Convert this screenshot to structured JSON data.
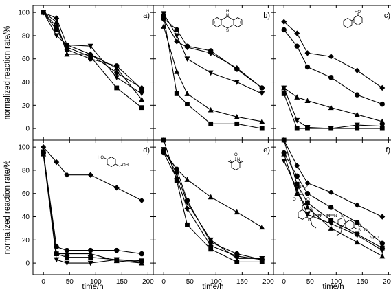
{
  "figure": {
    "ylabel": "normalized reaction rate/%",
    "xlabel": "time/h"
  },
  "chart_data": [
    {
      "type": "line",
      "panel": "a)",
      "x_ticks": [
        0,
        50,
        100,
        150,
        200
      ],
      "y_ticks": [
        0,
        20,
        40,
        60,
        80,
        100
      ],
      "xlim": [
        -20,
        210
      ],
      "ylim": [
        -10,
        106
      ],
      "series": [
        {
          "marker": "square",
          "x": [
            0,
            25,
            45,
            90,
            140,
            188
          ],
          "y": [
            100,
            85,
            70,
            62,
            35,
            18
          ]
        },
        {
          "marker": "circle",
          "x": [
            0,
            25,
            45,
            90,
            140,
            188
          ],
          "y": [
            100,
            88,
            68,
            60,
            54,
            34
          ]
        },
        {
          "marker": "triangle-up",
          "x": [
            0,
            25,
            45,
            90,
            140,
            188
          ],
          "y": [
            100,
            92,
            64,
            64,
            52,
            25
          ]
        },
        {
          "marker": "triangle-down",
          "x": [
            0,
            25,
            45,
            90,
            140,
            188
          ],
          "y": [
            100,
            80,
            72,
            71,
            44,
            30
          ]
        },
        {
          "marker": "diamond",
          "x": [
            0,
            25,
            45,
            90,
            140,
            188
          ],
          "y": [
            100,
            95,
            72,
            64,
            48,
            35
          ]
        }
      ]
    },
    {
      "type": "line",
      "panel": "b)",
      "x_ticks": [
        0,
        50,
        100,
        150,
        200
      ],
      "y_ticks": [
        0,
        20,
        40,
        60,
        80,
        100
      ],
      "xlim": [
        -20,
        210
      ],
      "ylim": [
        -10,
        106
      ],
      "series": [
        {
          "marker": "square",
          "x": [
            0,
            25,
            45,
            90,
            140,
            188
          ],
          "y": [
            97,
            30,
            21,
            4,
            4,
            0
          ]
        },
        {
          "marker": "circle",
          "x": [
            0,
            25,
            45,
            90,
            140,
            188
          ],
          "y": [
            95,
            85,
            71,
            67,
            51,
            35
          ]
        },
        {
          "marker": "triangle-up",
          "x": [
            0,
            25,
            45,
            90,
            140,
            188
          ],
          "y": [
            88,
            49,
            30,
            16,
            10,
            6
          ]
        },
        {
          "marker": "triangle-down",
          "x": [
            0,
            25,
            45,
            90,
            140,
            188
          ],
          "y": [
            99,
            80,
            60,
            48,
            40,
            30
          ]
        },
        {
          "marker": "diamond",
          "x": [
            0,
            25,
            45,
            90,
            140,
            188
          ],
          "y": [
            94,
            75,
            70,
            65,
            52,
            35
          ]
        }
      ]
    },
    {
      "type": "line",
      "panel": "c)",
      "x_ticks": [
        0,
        50,
        100,
        150,
        200
      ],
      "y_ticks": [
        0,
        20,
        40,
        60,
        80,
        100
      ],
      "xlim": [
        -20,
        210
      ],
      "ylim": [
        -10,
        106
      ],
      "series": [
        {
          "marker": "square",
          "x": [
            0,
            25,
            45,
            90,
            140,
            188
          ],
          "y": [
            30,
            0,
            0,
            0,
            0,
            0
          ]
        },
        {
          "marker": "circle",
          "x": [
            0,
            25,
            45,
            90,
            140,
            188
          ],
          "y": [
            85,
            71,
            53,
            44,
            29,
            21
          ]
        },
        {
          "marker": "triangle-up",
          "x": [
            0,
            25,
            45,
            90,
            140,
            188
          ],
          "y": [
            35,
            27,
            24,
            18,
            12,
            6
          ]
        },
        {
          "marker": "triangle-down",
          "x": [
            0,
            25,
            45,
            90,
            140,
            188
          ],
          "y": [
            35,
            7,
            1,
            0,
            3,
            2
          ]
        },
        {
          "marker": "diamond",
          "x": [
            0,
            25,
            45,
            90,
            140,
            188
          ],
          "y": [
            92,
            82,
            65,
            62,
            50,
            35
          ]
        }
      ]
    },
    {
      "type": "line",
      "panel": "d)",
      "x_ticks": [
        0,
        50,
        100,
        150,
        200
      ],
      "y_ticks": [
        0,
        20,
        40,
        60,
        80,
        100
      ],
      "xlim": [
        -20,
        210
      ],
      "ylim": [
        -10,
        106
      ],
      "series": [
        {
          "marker": "square",
          "x": [
            0,
            25,
            45,
            90,
            140,
            188
          ],
          "y": [
            96,
            8,
            5,
            5,
            3,
            2
          ]
        },
        {
          "marker": "circle",
          "x": [
            0,
            25,
            45,
            90,
            140,
            188
          ],
          "y": [
            95,
            14,
            11,
            11,
            11,
            8
          ]
        },
        {
          "marker": "triangle-up",
          "x": [
            0,
            25,
            45,
            90,
            140,
            188
          ],
          "y": [
            94,
            8,
            8,
            8,
            2,
            0
          ]
        },
        {
          "marker": "triangle-down",
          "x": [
            0,
            25,
            45,
            90,
            140,
            188
          ],
          "y": [
            93,
            3,
            0,
            0,
            3,
            1
          ]
        },
        {
          "marker": "diamond",
          "x": [
            0,
            25,
            45,
            90,
            140,
            188
          ],
          "y": [
            100,
            87,
            76,
            76,
            65,
            54
          ]
        }
      ]
    },
    {
      "type": "line",
      "panel": "e)",
      "x_ticks": [
        0,
        50,
        100,
        150,
        200
      ],
      "y_ticks": [
        0,
        20,
        40,
        60,
        80,
        100
      ],
      "xlim": [
        -20,
        210
      ],
      "ylim": [
        -10,
        106
      ],
      "series": [
        {
          "marker": "square",
          "x": [
            0,
            25,
            45,
            90,
            140,
            188
          ],
          "y": [
            106,
            71,
            33,
            12,
            1,
            1
          ]
        },
        {
          "marker": "circle",
          "x": [
            0,
            25,
            45,
            90,
            140,
            188
          ],
          "y": [
            97,
            81,
            54,
            18,
            8,
            3
          ]
        },
        {
          "marker": "triangle-up",
          "x": [
            0,
            25,
            45,
            90,
            140,
            188
          ],
          "y": [
            96,
            81,
            72,
            57,
            44,
            31
          ]
        },
        {
          "marker": "triangle-down",
          "x": [
            0,
            25,
            45,
            90,
            140,
            188
          ],
          "y": [
            98,
            77,
            52,
            20,
            4,
            4
          ]
        },
        {
          "marker": "diamond",
          "x": [
            0,
            25,
            45,
            90,
            140,
            188
          ],
          "y": [
            95,
            73,
            47,
            15,
            6,
            3
          ]
        }
      ]
    },
    {
      "type": "line",
      "panel": "f)",
      "x_ticks": [
        0,
        50,
        100,
        150,
        200
      ],
      "y_ticks": [
        0,
        20,
        40,
        60,
        80,
        100
      ],
      "xlim": [
        -20,
        210
      ],
      "ylim": [
        -10,
        106
      ],
      "series": [
        {
          "marker": "square",
          "x": [
            0,
            25,
            45,
            90,
            140,
            188
          ],
          "y": [
            106,
            68,
            52,
            37,
            25,
            13
          ]
        },
        {
          "marker": "circle",
          "x": [
            0,
            25,
            45,
            90,
            140,
            188
          ],
          "y": [
            95,
            75,
            60,
            48,
            35,
            17
          ]
        },
        {
          "marker": "triangle-up",
          "x": [
            0,
            25,
            45,
            90,
            140,
            188
          ],
          "y": [
            94,
            60,
            48,
            30,
            18,
            6
          ]
        },
        {
          "marker": "triangle-down",
          "x": [
            0,
            25,
            45,
            90,
            140,
            188
          ],
          "y": [
            88,
            64,
            42,
            34,
            24,
            11
          ]
        },
        {
          "marker": "diamond",
          "x": [
            0,
            25,
            45,
            90,
            140,
            188
          ],
          "y": [
            106,
            84,
            69,
            61,
            50,
            40
          ]
        }
      ]
    }
  ],
  "structures": {
    "b": {
      "atoms": [
        "H",
        "N",
        "S"
      ]
    },
    "c": {
      "atoms": [
        "HO"
      ]
    },
    "d": {
      "atoms": [
        "HO",
        "OH"
      ]
    },
    "e": {
      "atoms": [
        "O",
        "N"
      ]
    },
    "f": {
      "atoms": [
        "NH₄⁺",
        "O",
        "S",
        "O",
        "O",
        "S",
        "N",
        "N",
        "N",
        "N",
        "S",
        "N",
        "O",
        "S",
        "O",
        "O",
        "NH₄⁺"
      ]
    }
  }
}
